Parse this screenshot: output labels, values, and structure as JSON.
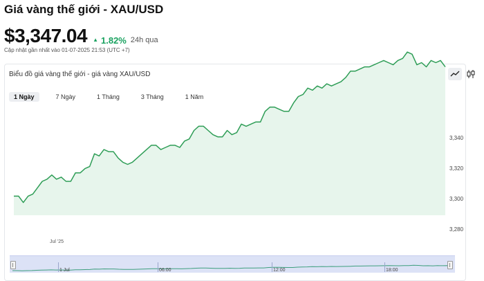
{
  "header": {
    "title": "Giá vàng thế giới - XAU/USD",
    "price": "$3,347.04",
    "change": "1.82%",
    "period": "24h qua",
    "updated": "Cập nhật gần nhất vào 01-07-2025 21:53 (UTC +7)"
  },
  "chart_card": {
    "title": "Biểu đồ giá vàng thế giới - giá vàng XAU/USD",
    "chart_type_icons": [
      "line-chart-icon",
      "candlestick-icon"
    ],
    "ranges": [
      "1 Ngày",
      "7 Ngày",
      "1 Tháng",
      "3 Tháng",
      "1 Năm"
    ],
    "active_range": "1 Ngày"
  },
  "colors": {
    "line": "#2e9d56",
    "area": "#e7f5ec",
    "up": "#1aa260",
    "navigator": "#dce2f6"
  },
  "chart_data": {
    "type": "area",
    "title": "",
    "xlabel": "",
    "ylabel": "",
    "x_tick_labels": [
      "Jul '25"
    ],
    "y_tick_labels": [
      "3,340",
      "3,320",
      "3,300",
      "3,280"
    ],
    "ylim": [
      3276,
      3356
    ],
    "grid": false,
    "series": [
      {
        "values": [
          3285,
          3285,
          3282,
          3285,
          3286,
          3289,
          3292,
          3293,
          3295,
          3293,
          3294,
          3292,
          3292,
          3296,
          3296,
          3298,
          3299,
          3305,
          3304,
          3307,
          3306,
          3306,
          3303,
          3301,
          3300,
          3301,
          3303,
          3305,
          3307,
          3309,
          3309,
          3307,
          3308,
          3309,
          3309,
          3308,
          3311,
          3312,
          3316,
          3318,
          3318,
          3316,
          3314,
          3313,
          3313,
          3316,
          3314,
          3315,
          3319,
          3318,
          3319,
          3320,
          3320,
          3325,
          3327,
          3327,
          3326,
          3325,
          3325,
          3329,
          3332,
          3333,
          3336,
          3335,
          3337,
          3336,
          3338,
          3337,
          3338,
          3339,
          3341,
          3344,
          3344,
          3345,
          3346,
          3346,
          3347,
          3348,
          3349,
          3348,
          3347,
          3349,
          3350,
          3353,
          3352,
          3347,
          3348,
          3346,
          3349,
          3348,
          3349,
          3346
        ]
      }
    ],
    "navigator": {
      "x_tick_labels": [
        "1 Jul",
        "06:00",
        "12:00",
        "18:00"
      ]
    }
  }
}
